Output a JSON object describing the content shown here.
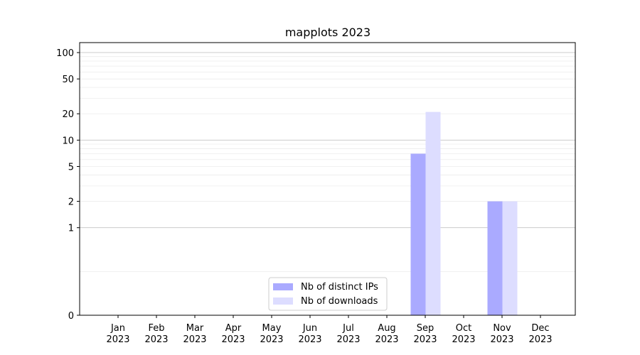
{
  "chart_data": {
    "type": "bar",
    "title": "mapplots 2023",
    "xlabel": "",
    "ylabel": "",
    "yscale": "symlog",
    "ylim": [
      0,
      130
    ],
    "categories": [
      [
        "Jan",
        "2023"
      ],
      [
        "Feb",
        "2023"
      ],
      [
        "Mar",
        "2023"
      ],
      [
        "Apr",
        "2023"
      ],
      [
        "May",
        "2023"
      ],
      [
        "Jun",
        "2023"
      ],
      [
        "Jul",
        "2023"
      ],
      [
        "Aug",
        "2023"
      ],
      [
        "Sep",
        "2023"
      ],
      [
        "Oct",
        "2023"
      ],
      [
        "Nov",
        "2023"
      ],
      [
        "Dec",
        "2023"
      ]
    ],
    "yticks": [
      {
        "value": 0,
        "label": "0"
      },
      {
        "value": 1,
        "label": "1"
      },
      {
        "value": 2,
        "label": "2"
      },
      {
        "value": 5,
        "label": "5"
      },
      {
        "value": 10,
        "label": "10"
      },
      {
        "value": 20,
        "label": "20"
      },
      {
        "value": 50,
        "label": "50"
      },
      {
        "value": 100,
        "label": "100"
      }
    ],
    "series": [
      {
        "name": "Nb of distinct IPs",
        "color": "#aaaaff",
        "values": [
          0,
          0,
          0,
          0,
          0,
          0,
          0,
          0,
          7,
          0,
          2,
          0
        ]
      },
      {
        "name": "Nb of downloads",
        "color": "#ddddff",
        "values": [
          0,
          0,
          0,
          0,
          0,
          0,
          0,
          0,
          21,
          0,
          2,
          0
        ]
      }
    ],
    "grid": true,
    "legend": "lower-center"
  }
}
